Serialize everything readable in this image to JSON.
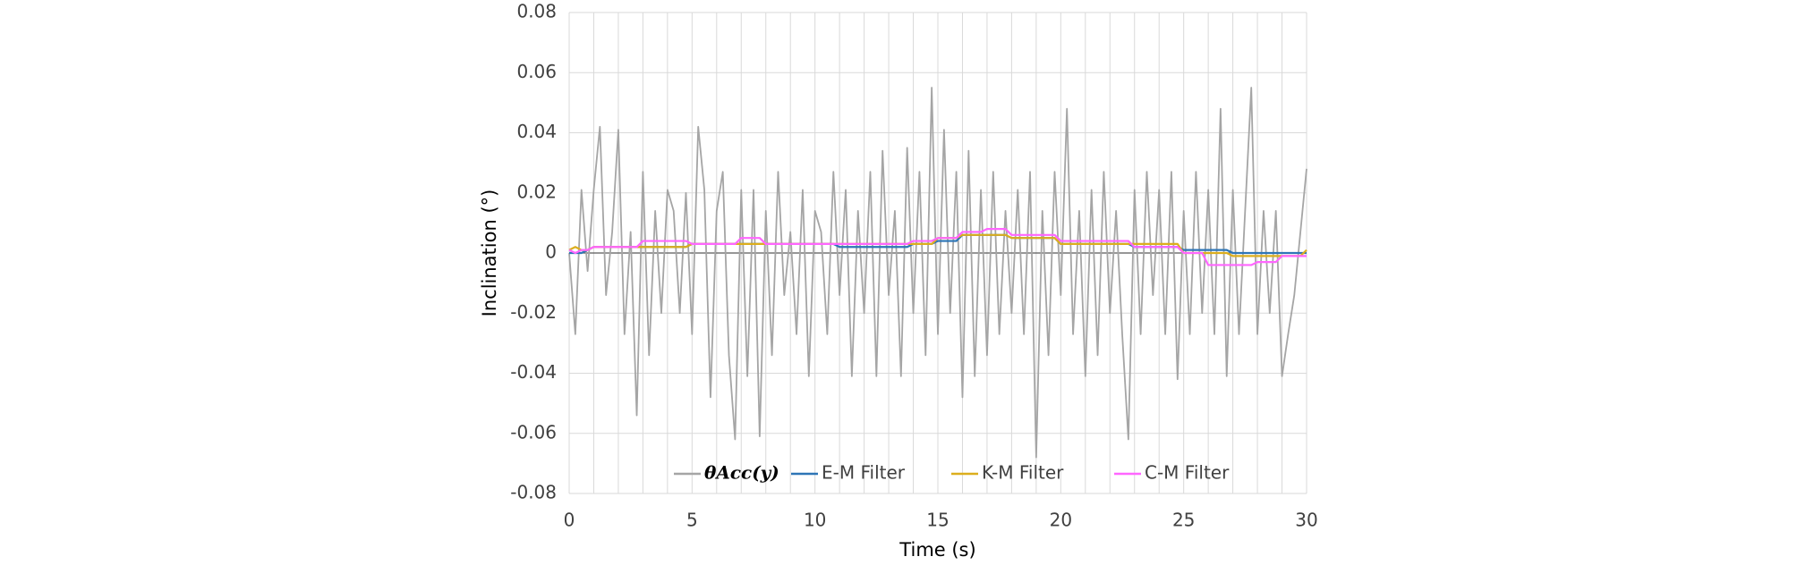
{
  "chart_data": {
    "type": "line",
    "xlabel": "Time (s)",
    "ylabel": "Inclination (°)",
    "x": [
      0,
      0.25,
      0.5,
      0.75,
      1,
      1.25,
      1.5,
      1.75,
      2,
      2.25,
      2.5,
      2.75,
      3,
      3.25,
      3.5,
      3.75,
      4,
      4.25,
      4.5,
      4.75,
      5,
      5.25,
      5.5,
      5.75,
      6,
      6.25,
      6.5,
      6.75,
      7,
      7.25,
      7.5,
      7.75,
      8,
      8.25,
      8.5,
      8.75,
      9,
      9.25,
      9.5,
      9.75,
      10,
      10.25,
      10.5,
      10.75,
      11,
      11.25,
      11.5,
      11.75,
      12,
      12.25,
      12.5,
      12.75,
      13,
      13.25,
      13.5,
      13.75,
      14,
      14.25,
      14.5,
      14.75,
      15,
      15.25,
      15.5,
      15.75,
      16,
      16.25,
      16.5,
      16.75,
      17,
      17.25,
      17.5,
      17.75,
      18,
      18.25,
      18.5,
      18.75,
      19,
      19.25,
      19.5,
      19.75,
      20,
      20.25,
      20.5,
      20.75,
      21,
      21.25,
      21.5,
      21.75,
      22,
      22.25,
      22.5,
      22.75,
      23,
      23.25,
      23.5,
      23.75,
      24,
      24.25,
      24.5,
      24.75,
      25,
      25.25,
      25.5,
      25.75,
      26,
      26.25,
      26.5,
      26.75,
      27,
      27.25,
      27.5,
      27.75,
      28,
      28.25,
      28.5,
      28.75,
      29,
      29.25,
      29.5,
      29.75,
      30
    ],
    "series": [
      {
        "name": "θAcc(y)",
        "color": "#a5a5a5",
        "values": [
          0,
          -0.027,
          0.021,
          -0.006,
          0.021,
          0.042,
          -0.014,
          0.007,
          0.041,
          -0.027,
          0.007,
          -0.054,
          0.027,
          -0.034,
          0.014,
          -0.02,
          0.021,
          0.014,
          -0.02,
          0.02,
          -0.027,
          0.042,
          0.021,
          -0.048,
          0.014,
          0.027,
          -0.034,
          -0.062,
          0.021,
          -0.041,
          0.021,
          -0.061,
          0.014,
          -0.034,
          0.027,
          -0.014,
          0.007,
          -0.027,
          0.021,
          -0.041,
          0.014,
          0.007,
          -0.027,
          0.027,
          -0.014,
          0.021,
          -0.041,
          0.014,
          -0.02,
          0.027,
          -0.041,
          0.034,
          -0.014,
          0.014,
          -0.041,
          0.035,
          -0.02,
          0.027,
          -0.034,
          0.055,
          -0.027,
          0.041,
          -0.02,
          0.027,
          -0.048,
          0.034,
          -0.041,
          0.021,
          -0.034,
          0.027,
          -0.027,
          0.014,
          -0.02,
          0.021,
          -0.027,
          0.027,
          -0.068,
          0.014,
          -0.034,
          0.027,
          -0.014,
          0.048,
          -0.027,
          0.014,
          -0.041,
          0.021,
          -0.034,
          0.027,
          -0.02,
          0.014,
          -0.027,
          -0.062,
          0.021,
          -0.027,
          0.027,
          -0.014,
          0.021,
          -0.027,
          0.027,
          -0.042,
          0.014,
          -0.027,
          0.027,
          -0.02,
          0.021,
          -0.027,
          0.048,
          -0.041,
          0.021,
          -0.027,
          0.014,
          0.055,
          -0.027,
          0.014,
          -0.02,
          0.014,
          -0.041,
          -0.027,
          -0.014,
          0.007,
          0.028
        ]
      },
      {
        "name": "E-M Filter",
        "color": "#2e75b6",
        "values": [
          0,
          0,
          0,
          0.001,
          0.002,
          0.002,
          0.002,
          0.002,
          0.002,
          0.002,
          0.002,
          0.002,
          0.002,
          0.002,
          0.002,
          0.002,
          0.002,
          0.002,
          0.002,
          0.002,
          0.003,
          0.003,
          0.003,
          0.003,
          0.003,
          0.003,
          0.003,
          0.003,
          0.003,
          0.003,
          0.003,
          0.003,
          0.003,
          0.003,
          0.003,
          0.003,
          0.003,
          0.003,
          0.003,
          0.003,
          0.003,
          0.003,
          0.003,
          0.003,
          0.002,
          0.002,
          0.002,
          0.002,
          0.002,
          0.002,
          0.002,
          0.002,
          0.002,
          0.002,
          0.002,
          0.002,
          0.003,
          0.003,
          0.003,
          0.003,
          0.004,
          0.004,
          0.004,
          0.004,
          0.006,
          0.006,
          0.006,
          0.006,
          0.006,
          0.006,
          0.006,
          0.006,
          0.005,
          0.005,
          0.005,
          0.005,
          0.005,
          0.005,
          0.005,
          0.005,
          0.003,
          0.003,
          0.003,
          0.003,
          0.003,
          0.003,
          0.003,
          0.003,
          0.003,
          0.003,
          0.003,
          0.003,
          0.002,
          0.002,
          0.002,
          0.002,
          0.002,
          0.002,
          0.002,
          0.002,
          0.001,
          0.001,
          0.001,
          0.001,
          0.001,
          0.001,
          0.001,
          0.001,
          0,
          0,
          0,
          0,
          0,
          0,
          0,
          0,
          0,
          0,
          0,
          0,
          0
        ]
      },
      {
        "name": "K-M Filter",
        "color": "#dcae1d",
        "values": [
          0.001,
          0.002,
          0.001,
          0.001,
          0.002,
          0.002,
          0.002,
          0.002,
          0.002,
          0.002,
          0.002,
          0.002,
          0.002,
          0.002,
          0.002,
          0.002,
          0.002,
          0.002,
          0.002,
          0.002,
          0.003,
          0.003,
          0.003,
          0.003,
          0.003,
          0.003,
          0.003,
          0.003,
          0.003,
          0.003,
          0.003,
          0.003,
          0.003,
          0.003,
          0.003,
          0.003,
          0.003,
          0.003,
          0.003,
          0.003,
          0.003,
          0.003,
          0.003,
          0.003,
          0.003,
          0.003,
          0.003,
          0.003,
          0.003,
          0.003,
          0.003,
          0.003,
          0.003,
          0.003,
          0.003,
          0.003,
          0.003,
          0.003,
          0.003,
          0.003,
          0.005,
          0.005,
          0.005,
          0.005,
          0.006,
          0.006,
          0.006,
          0.006,
          0.006,
          0.006,
          0.006,
          0.006,
          0.005,
          0.005,
          0.005,
          0.005,
          0.005,
          0.005,
          0.005,
          0.005,
          0.003,
          0.003,
          0.003,
          0.003,
          0.003,
          0.003,
          0.003,
          0.003,
          0.003,
          0.003,
          0.003,
          0.003,
          0.003,
          0.003,
          0.003,
          0.003,
          0.003,
          0.003,
          0.003,
          0.003,
          0,
          0,
          0,
          0,
          0,
          0,
          0,
          0,
          -0.001,
          -0.001,
          -0.001,
          -0.001,
          -0.001,
          -0.001,
          -0.001,
          -0.001,
          -0.001,
          -0.001,
          -0.001,
          -0.001,
          0.001
        ]
      },
      {
        "name": "C-M Filter",
        "color": "#ff66ff",
        "values": [
          0.001,
          0,
          0.001,
          0.001,
          0.002,
          0.002,
          0.002,
          0.002,
          0.002,
          0.002,
          0.002,
          0.002,
          0.004,
          0.004,
          0.004,
          0.004,
          0.004,
          0.004,
          0.004,
          0.004,
          0.003,
          0.003,
          0.003,
          0.003,
          0.003,
          0.003,
          0.003,
          0.003,
          0.005,
          0.005,
          0.005,
          0.005,
          0.003,
          0.003,
          0.003,
          0.003,
          0.003,
          0.003,
          0.003,
          0.003,
          0.003,
          0.003,
          0.003,
          0.003,
          0.003,
          0.003,
          0.003,
          0.003,
          0.003,
          0.003,
          0.003,
          0.003,
          0.003,
          0.003,
          0.003,
          0.003,
          0.004,
          0.004,
          0.004,
          0.004,
          0.005,
          0.005,
          0.005,
          0.005,
          0.007,
          0.007,
          0.007,
          0.007,
          0.008,
          0.008,
          0.008,
          0.008,
          0.006,
          0.006,
          0.006,
          0.006,
          0.006,
          0.006,
          0.006,
          0.006,
          0.004,
          0.004,
          0.004,
          0.004,
          0.004,
          0.004,
          0.004,
          0.004,
          0.004,
          0.004,
          0.004,
          0.004,
          0.002,
          0.002,
          0.002,
          0.002,
          0.002,
          0.002,
          0.002,
          0.002,
          0,
          0,
          0,
          0,
          -0.004,
          -0.004,
          -0.004,
          -0.004,
          -0.004,
          -0.004,
          -0.004,
          -0.004,
          -0.003,
          -0.003,
          -0.003,
          -0.003,
          -0.001,
          -0.001,
          -0.001,
          -0.001,
          -0.001
        ]
      }
    ],
    "xlim": [
      0,
      30
    ],
    "xticks": [
      0,
      5,
      10,
      15,
      20,
      25,
      30
    ],
    "ylim": [
      -0.08,
      0.08
    ],
    "yticks": [
      -0.08,
      -0.06,
      -0.04,
      -0.02,
      0,
      0.02,
      0.04,
      0.06,
      0.08
    ],
    "grid": true,
    "legend": "bottom"
  }
}
